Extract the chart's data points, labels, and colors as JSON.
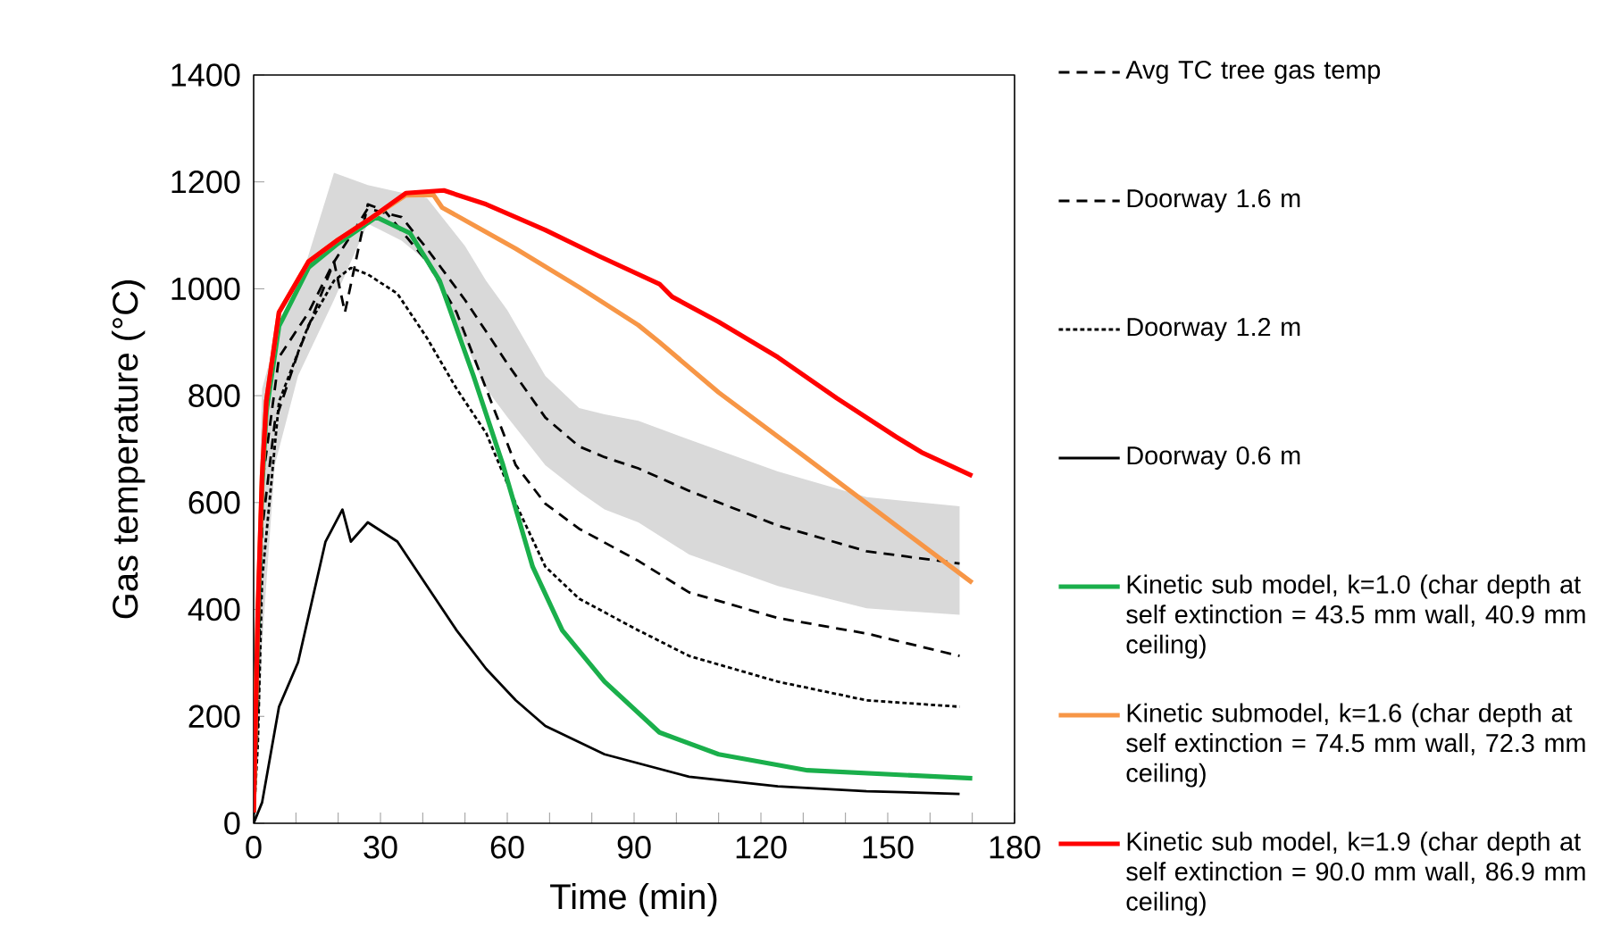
{
  "chart_data": {
    "type": "line",
    "xlabel": "Time (min)",
    "ylabel": "Gas temperature (°C)",
    "xlim": [
      0,
      180
    ],
    "ylim": [
      0,
      1400
    ],
    "xticks": [
      0,
      {
        "value": 10,
        "label": null
      },
      {
        "value": 20,
        "label": null
      },
      30,
      {
        "value": 40,
        "label": null
      },
      {
        "value": 50,
        "label": null
      },
      60,
      {
        "value": 70,
        "label": null
      },
      {
        "value": 80,
        "label": null
      },
      90,
      {
        "value": 100,
        "label": null
      },
      {
        "value": 110,
        "label": null
      },
      120,
      {
        "value": 130,
        "label": null
      },
      {
        "value": 140,
        "label": null
      },
      150,
      {
        "value": 160,
        "label": null
      },
      {
        "value": 170,
        "label": null
      },
      180
    ],
    "yticks": [
      0,
      200,
      400,
      600,
      800,
      1000,
      1200,
      1400
    ],
    "legend": "right",
    "marker": "none",
    "grid": false,
    "series": [
      {
        "name": "Avg TC tree gas temp",
        "color": "#000000",
        "line_style": "dashed",
        "x": [
          1,
          2,
          5,
          10.5,
          19,
          27,
          35,
          41,
          50,
          55,
          60,
          69,
          77,
          83,
          91,
          103,
          124,
          145,
          167
        ],
        "values": [
          300,
          550,
          750,
          880,
          1050,
          1150,
          1134,
          1075,
          979,
          920,
          860,
          759,
          705,
          685,
          664,
          622,
          557,
          509,
          486
        ],
        "upper": [
          500,
          813,
          900,
          1000,
          1217,
          1194,
          1180,
          1170,
          1080,
          1015,
          960,
          837,
          777,
          765,
          753,
          718,
          658,
          610,
          593
        ],
        "lower": [
          100,
          337,
          670,
          837,
          979,
          1122,
          1090,
          1051,
          900,
          813,
          760,
          670,
          620,
          587,
          563,
          503,
          444,
          402,
          390
        ]
      },
      {
        "name": "Doorway 1.6 m",
        "color": "#000000",
        "line_style": "dashed",
        "x": [
          0,
          1,
          2,
          6,
          13,
          19,
          21.6,
          27,
          31,
          41,
          48,
          55,
          62,
          69,
          77,
          91,
          103,
          124,
          145,
          167
        ],
        "values": [
          10,
          200,
          634,
          872,
          956,
          1051,
          956,
          1158,
          1146,
          1051,
          956,
          813,
          670,
          598,
          551,
          491,
          432,
          384,
          355,
          313
        ]
      },
      {
        "name": "Doorway 1.2 m",
        "color": "#000000",
        "line_style": "dotted",
        "x": [
          0,
          1,
          2,
          6,
          13,
          19,
          23,
          27,
          34,
          41,
          48,
          55,
          62,
          69,
          77,
          91,
          103,
          124,
          145,
          167
        ],
        "values": [
          5,
          150,
          456,
          789,
          932,
          1015,
          1039,
          1027,
          991,
          908,
          813,
          730,
          598,
          480,
          420,
          361,
          313,
          265,
          230,
          218
        ]
      },
      {
        "name": "Doorway 0.6 m",
        "color": "#000000",
        "line_style": "solid",
        "x": [
          0,
          2,
          6,
          10.5,
          17,
          21,
          23,
          27,
          34,
          41,
          48,
          55,
          62,
          69,
          83,
          103,
          124,
          145,
          167
        ],
        "values": [
          0,
          39,
          218,
          301,
          527,
          587,
          527,
          563,
          527,
          444,
          361,
          289,
          230,
          182,
          129,
          87,
          69,
          60,
          55
        ]
      },
      {
        "name": "Kinetic sub model, k=1.0 (char depth at self extinction = 43.5 mm wall, 40.9 mm ceiling)",
        "color": "#1aaf4b",
        "line_style": "solid",
        "x": [
          0,
          1,
          2,
          3,
          6,
          13,
          20,
          29,
          37,
          44,
          52,
          59,
          66,
          73,
          83,
          96,
          110,
          131,
          170
        ],
        "values": [
          20,
          380,
          630,
          770,
          930,
          1040,
          1085,
          1134,
          1104,
          1015,
          837,
          670,
          480,
          361,
          265,
          170,
          129,
          99,
          84
        ]
      },
      {
        "name": "Kinetic submodel, k=1.6 (char depth at self extinction = 74.5 mm wall, 72.3 mm ceiling)",
        "color": "#f79646",
        "line_style": "solid",
        "x": [
          0,
          1,
          2,
          3,
          6,
          13,
          20,
          27,
          36,
          42.5,
          44.6,
          62,
          77,
          91,
          96,
          110,
          130,
          149,
          170
        ],
        "values": [
          20,
          400,
          650,
          790,
          956,
          1051,
          1092,
          1128,
          1175,
          1176,
          1152,
          1075,
          1003,
          932,
          900,
          806,
          688,
          575,
          450
        ]
      },
      {
        "name": "Kinetic sub model, k=1.9 (char depth at self extinction = 90.0 mm wall, 86.9 mm ceiling)",
        "color": "#ff0000",
        "line_style": "solid",
        "x": [
          0,
          1,
          2,
          3,
          6,
          13,
          20,
          27,
          36,
          45,
          55,
          69,
          82,
          96,
          99,
          110,
          124,
          138,
          152,
          158,
          170
        ],
        "values": [
          20,
          400,
          650,
          790,
          956,
          1051,
          1092,
          1128,
          1179,
          1184,
          1158,
          1110,
          1060,
          1009,
          985,
          938,
          872,
          795,
          723,
          694,
          650
        ]
      }
    ]
  }
}
